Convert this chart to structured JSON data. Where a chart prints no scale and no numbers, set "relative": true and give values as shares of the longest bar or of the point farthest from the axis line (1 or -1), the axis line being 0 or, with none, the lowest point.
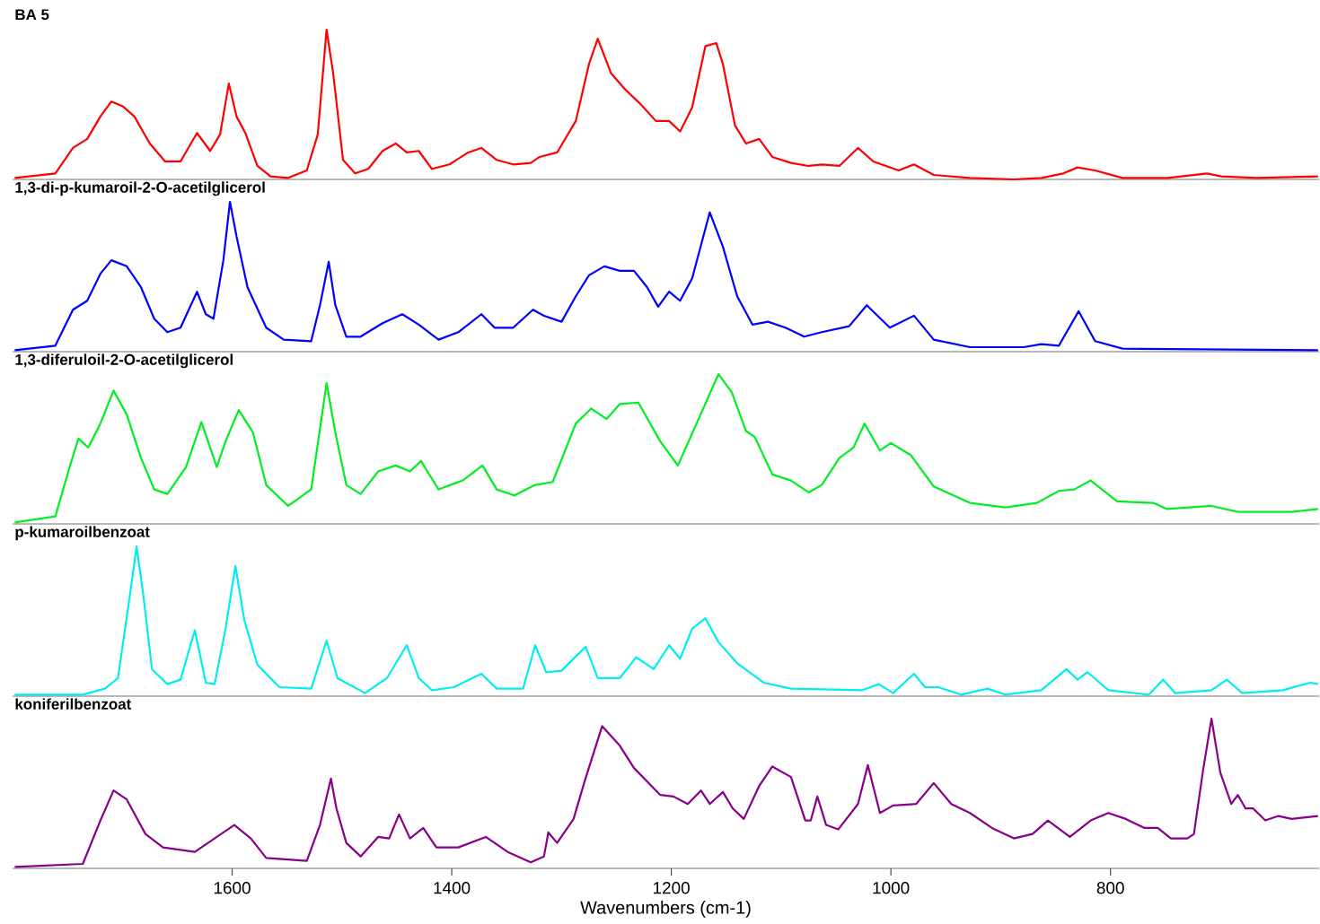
{
  "chart_data": [
    {
      "type": "line",
      "title": "BA 5",
      "relative": true,
      "color": "#ff0000",
      "xlim": [
        1800,
        610
      ],
      "tick_labels": false,
      "x": [
        1798,
        1761,
        1745,
        1732,
        1720,
        1710,
        1700,
        1689,
        1675,
        1661,
        1647,
        1632,
        1620,
        1611,
        1603,
        1596,
        1588,
        1577,
        1565,
        1549,
        1532,
        1522,
        1514,
        1508,
        1499,
        1488,
        1476,
        1463,
        1451,
        1441,
        1430,
        1418,
        1402,
        1385,
        1373,
        1359,
        1344,
        1328,
        1320,
        1304,
        1287,
        1275,
        1267,
        1255,
        1242,
        1229,
        1214,
        1202,
        1192,
        1181,
        1169,
        1159,
        1153,
        1142,
        1132,
        1120,
        1108,
        1091,
        1075,
        1063,
        1047,
        1030,
        1016,
        993,
        979,
        961,
        928,
        888,
        863,
        843,
        830,
        814,
        789,
        748,
        712,
        699,
        667,
        611
      ],
      "values": [
        0.01,
        0.04,
        0.21,
        0.27,
        0.42,
        0.52,
        0.49,
        0.42,
        0.24,
        0.12,
        0.12,
        0.31,
        0.19,
        0.3,
        0.64,
        0.42,
        0.31,
        0.09,
        0.02,
        0.01,
        0.06,
        0.3,
        1.0,
        0.71,
        0.13,
        0.04,
        0.07,
        0.19,
        0.24,
        0.18,
        0.19,
        0.07,
        0.1,
        0.18,
        0.21,
        0.13,
        0.1,
        0.11,
        0.15,
        0.18,
        0.39,
        0.77,
        0.94,
        0.71,
        0.6,
        0.51,
        0.39,
        0.39,
        0.32,
        0.48,
        0.89,
        0.91,
        0.77,
        0.36,
        0.24,
        0.27,
        0.15,
        0.11,
        0.09,
        0.1,
        0.09,
        0.21,
        0.12,
        0.06,
        0.1,
        0.03,
        0.01,
        0.0,
        0.01,
        0.04,
        0.08,
        0.06,
        0.01,
        0.01,
        0.04,
        0.02,
        0.01,
        0.02
      ]
    },
    {
      "type": "line",
      "title": "1,3-di-p-kumaroil-2-O-acetilglicerol",
      "relative": true,
      "color": "#0000ff",
      "xlim": [
        1800,
        610
      ],
      "tick_labels": false,
      "x": [
        1798,
        1761,
        1745,
        1732,
        1720,
        1710,
        1696,
        1683,
        1671,
        1659,
        1647,
        1632,
        1624,
        1617,
        1608,
        1602,
        1596,
        1586,
        1569,
        1553,
        1528,
        1520,
        1512,
        1506,
        1496,
        1483,
        1463,
        1445,
        1430,
        1412,
        1394,
        1373,
        1361,
        1344,
        1326,
        1316,
        1300,
        1287,
        1275,
        1261,
        1247,
        1234,
        1222,
        1212,
        1202,
        1192,
        1181,
        1165,
        1153,
        1140,
        1126,
        1112,
        1096,
        1079,
        1063,
        1038,
        1022,
        1001,
        979,
        961,
        928,
        879,
        863,
        847,
        829,
        814,
        789,
        611
      ],
      "values": [
        0.01,
        0.04,
        0.28,
        0.34,
        0.52,
        0.61,
        0.57,
        0.43,
        0.22,
        0.13,
        0.16,
        0.4,
        0.25,
        0.22,
        0.61,
        1.0,
        0.77,
        0.43,
        0.16,
        0.08,
        0.07,
        0.31,
        0.6,
        0.31,
        0.1,
        0.1,
        0.19,
        0.25,
        0.18,
        0.08,
        0.13,
        0.25,
        0.16,
        0.16,
        0.28,
        0.24,
        0.2,
        0.37,
        0.51,
        0.57,
        0.54,
        0.54,
        0.43,
        0.3,
        0.4,
        0.34,
        0.49,
        0.93,
        0.7,
        0.37,
        0.18,
        0.2,
        0.16,
        0.1,
        0.13,
        0.17,
        0.31,
        0.16,
        0.24,
        0.08,
        0.03,
        0.03,
        0.05,
        0.04,
        0.27,
        0.07,
        0.02,
        0.01
      ]
    },
    {
      "type": "line",
      "title": "1,3-diferuloil-2-O-acetilglicerol",
      "relative": true,
      "color": "#00ee22",
      "xlim": [
        1800,
        610
      ],
      "tick_labels": false,
      "x": [
        1798,
        1761,
        1748,
        1740,
        1731,
        1720,
        1708,
        1696,
        1683,
        1671,
        1659,
        1642,
        1628,
        1614,
        1606,
        1594,
        1581,
        1569,
        1549,
        1528,
        1514,
        1506,
        1496,
        1483,
        1467,
        1451,
        1438,
        1428,
        1412,
        1390,
        1372,
        1359,
        1343,
        1324,
        1308,
        1287,
        1273,
        1259,
        1247,
        1230,
        1210,
        1194,
        1177,
        1157,
        1145,
        1132,
        1124,
        1108,
        1091,
        1075,
        1063,
        1047,
        1034,
        1024,
        1010,
        1000,
        982,
        961,
        928,
        896,
        867,
        847,
        833,
        818,
        794,
        761,
        749,
        708,
        684,
        635,
        611
      ],
      "values": [
        0.01,
        0.05,
        0.38,
        0.57,
        0.51,
        0.67,
        0.89,
        0.73,
        0.44,
        0.23,
        0.2,
        0.38,
        0.68,
        0.38,
        0.55,
        0.76,
        0.61,
        0.26,
        0.12,
        0.23,
        0.94,
        0.61,
        0.26,
        0.2,
        0.35,
        0.39,
        0.35,
        0.42,
        0.23,
        0.29,
        0.39,
        0.23,
        0.19,
        0.26,
        0.28,
        0.67,
        0.77,
        0.7,
        0.8,
        0.81,
        0.55,
        0.39,
        0.67,
        1.0,
        0.88,
        0.62,
        0.58,
        0.33,
        0.29,
        0.21,
        0.26,
        0.44,
        0.51,
        0.67,
        0.49,
        0.54,
        0.46,
        0.25,
        0.14,
        0.11,
        0.14,
        0.22,
        0.23,
        0.29,
        0.15,
        0.14,
        0.1,
        0.12,
        0.08,
        0.08,
        0.1
      ]
    },
    {
      "type": "line",
      "title": "p-kumaroilbenzoat",
      "relative": true,
      "color": "#00eeee",
      "xlim": [
        1800,
        610
      ],
      "tick_labels": false,
      "x": [
        1798,
        1736,
        1716,
        1704,
        1693,
        1687,
        1681,
        1673,
        1659,
        1647,
        1634,
        1624,
        1616,
        1606,
        1597,
        1589,
        1577,
        1557,
        1528,
        1514,
        1504,
        1479,
        1459,
        1441,
        1430,
        1418,
        1398,
        1373,
        1359,
        1335,
        1324,
        1314,
        1300,
        1278,
        1267,
        1247,
        1232,
        1216,
        1202,
        1192,
        1181,
        1169,
        1157,
        1140,
        1116,
        1091,
        1026,
        1011,
        998,
        979,
        969,
        957,
        936,
        912,
        896,
        863,
        840,
        830,
        821,
        802,
        765,
        752,
        741,
        708,
        694,
        680,
        643,
        618,
        611
      ],
      "values": [
        0.01,
        0.01,
        0.05,
        0.12,
        0.68,
        1.0,
        0.68,
        0.18,
        0.08,
        0.11,
        0.44,
        0.09,
        0.08,
        0.45,
        0.87,
        0.51,
        0.21,
        0.06,
        0.05,
        0.37,
        0.12,
        0.02,
        0.12,
        0.34,
        0.12,
        0.04,
        0.06,
        0.15,
        0.05,
        0.05,
        0.34,
        0.16,
        0.17,
        0.33,
        0.12,
        0.12,
        0.26,
        0.18,
        0.34,
        0.25,
        0.45,
        0.52,
        0.36,
        0.22,
        0.09,
        0.05,
        0.04,
        0.08,
        0.02,
        0.15,
        0.06,
        0.06,
        0.01,
        0.05,
        0.01,
        0.04,
        0.18,
        0.11,
        0.16,
        0.04,
        0.01,
        0.11,
        0.02,
        0.04,
        0.11,
        0.02,
        0.04,
        0.09,
        0.08
      ]
    },
    {
      "type": "line",
      "title": "koniferilbenzoat",
      "relative": true,
      "color": "#880088",
      "xlim": [
        1800,
        610
      ],
      "xticks": [
        1600,
        1400,
        1200,
        1000,
        800
      ],
      "xlabel": "Wavenumbers (cm-1)",
      "tick_labels": "x",
      "x": [
        1798,
        1736,
        1720,
        1708,
        1696,
        1679,
        1663,
        1634,
        1610,
        1598,
        1583,
        1569,
        1532,
        1520,
        1510,
        1505,
        1496,
        1483,
        1467,
        1457,
        1448,
        1438,
        1426,
        1414,
        1394,
        1369,
        1349,
        1328,
        1316,
        1312,
        1304,
        1289,
        1279,
        1263,
        1247,
        1234,
        1222,
        1210,
        1198,
        1185,
        1173,
        1165,
        1153,
        1144,
        1134,
        1120,
        1108,
        1091,
        1078,
        1073,
        1067,
        1059,
        1048,
        1030,
        1021,
        1010,
        998,
        977,
        961,
        945,
        928,
        908,
        888,
        871,
        857,
        837,
        818,
        802,
        786,
        769,
        757,
        745,
        730,
        724,
        716,
        708,
        700,
        690,
        684,
        677,
        670,
        659,
        647,
        635,
        611
      ],
      "values": [
        0.01,
        0.03,
        0.32,
        0.52,
        0.46,
        0.23,
        0.14,
        0.11,
        0.23,
        0.29,
        0.2,
        0.07,
        0.05,
        0.29,
        0.6,
        0.4,
        0.17,
        0.08,
        0.21,
        0.2,
        0.36,
        0.2,
        0.27,
        0.14,
        0.14,
        0.21,
        0.11,
        0.04,
        0.08,
        0.24,
        0.17,
        0.33,
        0.58,
        0.95,
        0.82,
        0.67,
        0.58,
        0.49,
        0.48,
        0.43,
        0.52,
        0.43,
        0.51,
        0.4,
        0.33,
        0.55,
        0.68,
        0.61,
        0.32,
        0.32,
        0.48,
        0.29,
        0.26,
        0.43,
        0.69,
        0.37,
        0.42,
        0.43,
        0.57,
        0.43,
        0.37,
        0.27,
        0.2,
        0.23,
        0.32,
        0.21,
        0.32,
        0.37,
        0.33,
        0.27,
        0.27,
        0.2,
        0.2,
        0.23,
        0.64,
        1.0,
        0.64,
        0.43,
        0.49,
        0.4,
        0.4,
        0.32,
        0.35,
        0.33,
        0.35
      ]
    }
  ]
}
